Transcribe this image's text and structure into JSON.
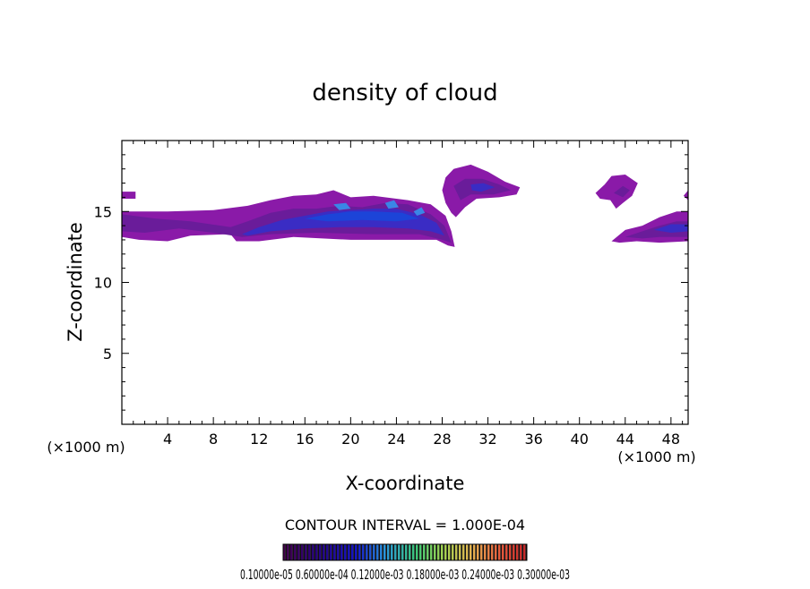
{
  "chart_data": {
    "type": "contour",
    "title": "density of cloud",
    "xlabel": "X-coordinate",
    "ylabel": "Z-coordinate",
    "x_unit_left": "(×1000 m)",
    "x_unit_right": "(×1000 m)",
    "xlim": [
      0,
      49.5
    ],
    "ylim": [
      0,
      20
    ],
    "x_ticks": [
      4,
      8,
      12,
      16,
      20,
      24,
      28,
      32,
      36,
      40,
      44,
      48
    ],
    "y_ticks": [
      5,
      10,
      15
    ],
    "contour_interval_label": "CONTOUR INTERVAL = 1.000E-04",
    "colorbar_labels_text": "0.10000e-05  0.60000e-04  0.12000e-03  0.18000e-03  0.24000e-03  0.30000e-03",
    "colorbar_range": [
      1e-06,
      0.00033
    ],
    "colors": {
      "low": "#8a1aa8",
      "low2": "#6a1c9a",
      "mid": "#3a2cc4",
      "core": "#1c44d8",
      "peak": "#3a86e6"
    },
    "regions": [
      {
        "name": "left-edge-blob",
        "level": "low",
        "pts": [
          [
            0,
            16.4
          ],
          [
            1.2,
            16.4
          ],
          [
            1.2,
            15.9
          ],
          [
            0,
            15.9
          ]
        ]
      },
      {
        "name": "main-cloud-low",
        "level": "low",
        "pts": [
          [
            0,
            15.0
          ],
          [
            4,
            15.0
          ],
          [
            8,
            15.1
          ],
          [
            11,
            15.4
          ],
          [
            13,
            15.8
          ],
          [
            15,
            16.1
          ],
          [
            17,
            16.2
          ],
          [
            18.5,
            16.5
          ],
          [
            20,
            16.0
          ],
          [
            22,
            16.1
          ],
          [
            25,
            15.8
          ],
          [
            27,
            15.5
          ],
          [
            28.3,
            14.7
          ],
          [
            28.8,
            13.6
          ],
          [
            29.1,
            12.5
          ],
          [
            28.5,
            12.6
          ],
          [
            27.5,
            13.0
          ],
          [
            25,
            13.0
          ],
          [
            20,
            13.0
          ],
          [
            15,
            13.2
          ],
          [
            12,
            12.9
          ],
          [
            10,
            12.9
          ],
          [
            9.5,
            13.4
          ],
          [
            6,
            13.3
          ],
          [
            4,
            12.9
          ],
          [
            1.5,
            13.0
          ],
          [
            0,
            13.2
          ]
        ]
      },
      {
        "name": "main-cloud-mid",
        "level": "low2",
        "pts": [
          [
            0,
            14.8
          ],
          [
            3,
            14.5
          ],
          [
            6,
            14.3
          ],
          [
            9.5,
            13.9
          ],
          [
            11,
            14.3
          ],
          [
            13,
            14.9
          ],
          [
            15,
            15.2
          ],
          [
            17,
            15.2
          ],
          [
            19,
            15.4
          ],
          [
            21,
            15.3
          ],
          [
            23,
            15.6
          ],
          [
            25,
            15.5
          ],
          [
            27,
            14.8
          ],
          [
            28.2,
            14.0
          ],
          [
            28.8,
            12.8
          ],
          [
            28,
            13.0
          ],
          [
            26,
            13.4
          ],
          [
            22,
            13.4
          ],
          [
            17,
            13.5
          ],
          [
            13,
            13.4
          ],
          [
            10.5,
            13.2
          ],
          [
            8,
            13.5
          ],
          [
            5,
            13.8
          ],
          [
            2,
            13.5
          ],
          [
            0,
            13.6
          ]
        ]
      },
      {
        "name": "main-cloud-core",
        "level": "mid",
        "pts": [
          [
            10.5,
            13.4
          ],
          [
            12,
            13.9
          ],
          [
            14,
            14.4
          ],
          [
            16,
            14.7
          ],
          [
            18,
            15.0
          ],
          [
            20,
            15.1
          ],
          [
            22,
            15.2
          ],
          [
            24,
            15.2
          ],
          [
            26,
            14.8
          ],
          [
            27.5,
            14.2
          ],
          [
            28.2,
            13.3
          ],
          [
            27,
            13.6
          ],
          [
            25,
            13.8
          ],
          [
            22,
            13.9
          ],
          [
            19,
            13.9
          ],
          [
            16,
            13.8
          ],
          [
            13,
            13.6
          ],
          [
            11,
            13.3
          ]
        ]
      },
      {
        "name": "main-cloud-dense",
        "level": "core",
        "pts": [
          [
            16,
            14.5
          ],
          [
            18,
            14.8
          ],
          [
            20,
            15.0
          ],
          [
            22,
            15.0
          ],
          [
            24.5,
            14.9
          ],
          [
            26,
            14.5
          ],
          [
            24,
            14.3
          ],
          [
            21,
            14.4
          ],
          [
            18,
            14.3
          ]
        ]
      },
      {
        "name": "peak-1",
        "level": "peak",
        "pts": [
          [
            18.5,
            15.5
          ],
          [
            19.6,
            15.6
          ],
          [
            20,
            15.2
          ],
          [
            19,
            15.1
          ]
        ]
      },
      {
        "name": "peak-2",
        "level": "peak",
        "pts": [
          [
            23,
            15.6
          ],
          [
            23.8,
            15.8
          ],
          [
            24.2,
            15.3
          ],
          [
            23.3,
            15.2
          ]
        ]
      },
      {
        "name": "peak-3",
        "level": "peak",
        "pts": [
          [
            25.5,
            15.0
          ],
          [
            26.2,
            15.3
          ],
          [
            26.5,
            14.9
          ],
          [
            25.8,
            14.7
          ]
        ]
      },
      {
        "name": "upper-cloud-low",
        "level": "low",
        "pts": [
          [
            28,
            16.5
          ],
          [
            28.3,
            17.4
          ],
          [
            29,
            18.0
          ],
          [
            30.5,
            18.3
          ],
          [
            32,
            17.8
          ],
          [
            33.5,
            17.1
          ],
          [
            34.8,
            16.7
          ],
          [
            34.5,
            16.2
          ],
          [
            33,
            16.0
          ],
          [
            31,
            15.9
          ],
          [
            30,
            15.3
          ],
          [
            29.2,
            14.6
          ],
          [
            28.8,
            14.9
          ],
          [
            28.3,
            15.6
          ]
        ]
      },
      {
        "name": "upper-cloud-mid",
        "level": "low2",
        "pts": [
          [
            29,
            16.8
          ],
          [
            30,
            17.3
          ],
          [
            31.5,
            17.3
          ],
          [
            33,
            16.9
          ],
          [
            34,
            16.5
          ],
          [
            32.5,
            16.2
          ],
          [
            30.5,
            16.2
          ],
          [
            29.6,
            15.8
          ]
        ]
      },
      {
        "name": "upper-cloud-core",
        "level": "mid",
        "pts": [
          [
            30.5,
            16.9
          ],
          [
            31.6,
            17.0
          ],
          [
            32.6,
            16.7
          ],
          [
            31.4,
            16.4
          ],
          [
            30.6,
            16.5
          ]
        ]
      },
      {
        "name": "right-upper-blob",
        "level": "low",
        "pts": [
          [
            41.4,
            16.3
          ],
          [
            42.2,
            16.9
          ],
          [
            42.8,
            17.5
          ],
          [
            44,
            17.6
          ],
          [
            45.1,
            17.0
          ],
          [
            44.6,
            16.1
          ],
          [
            43.8,
            15.6
          ],
          [
            43.2,
            15.2
          ],
          [
            42.7,
            15.8
          ],
          [
            41.8,
            15.9
          ]
        ]
      },
      {
        "name": "right-upper-blob-core",
        "level": "low2",
        "pts": [
          [
            43,
            16.3
          ],
          [
            43.8,
            16.8
          ],
          [
            44.4,
            16.5
          ],
          [
            43.8,
            16.0
          ]
        ]
      },
      {
        "name": "right-lower-cloud",
        "level": "low",
        "pts": [
          [
            42.8,
            12.9
          ],
          [
            44,
            13.7
          ],
          [
            45.5,
            14.0
          ],
          [
            47,
            14.6
          ],
          [
            48.5,
            15.0
          ],
          [
            49.5,
            15.0
          ],
          [
            49.5,
            12.9
          ],
          [
            47,
            12.8
          ],
          [
            45,
            12.9
          ],
          [
            43.5,
            12.8
          ]
        ]
      },
      {
        "name": "right-lower-cloud-mid",
        "level": "low2",
        "pts": [
          [
            44,
            13.2
          ],
          [
            45.5,
            13.6
          ],
          [
            47,
            14.0
          ],
          [
            48.5,
            14.3
          ],
          [
            49.5,
            14.3
          ],
          [
            49.5,
            13.2
          ],
          [
            47,
            13.2
          ],
          [
            45.5,
            13.1
          ]
        ]
      },
      {
        "name": "right-lower-cloud-core",
        "level": "mid",
        "pts": [
          [
            46.5,
            13.7
          ],
          [
            48,
            14.1
          ],
          [
            49.5,
            14.1
          ],
          [
            49.5,
            13.6
          ],
          [
            48,
            13.5
          ]
        ]
      },
      {
        "name": "right-edge-blob",
        "level": "low",
        "pts": [
          [
            49.1,
            16.1
          ],
          [
            49.5,
            16.5
          ],
          [
            49.5,
            15.8
          ]
        ]
      }
    ]
  }
}
